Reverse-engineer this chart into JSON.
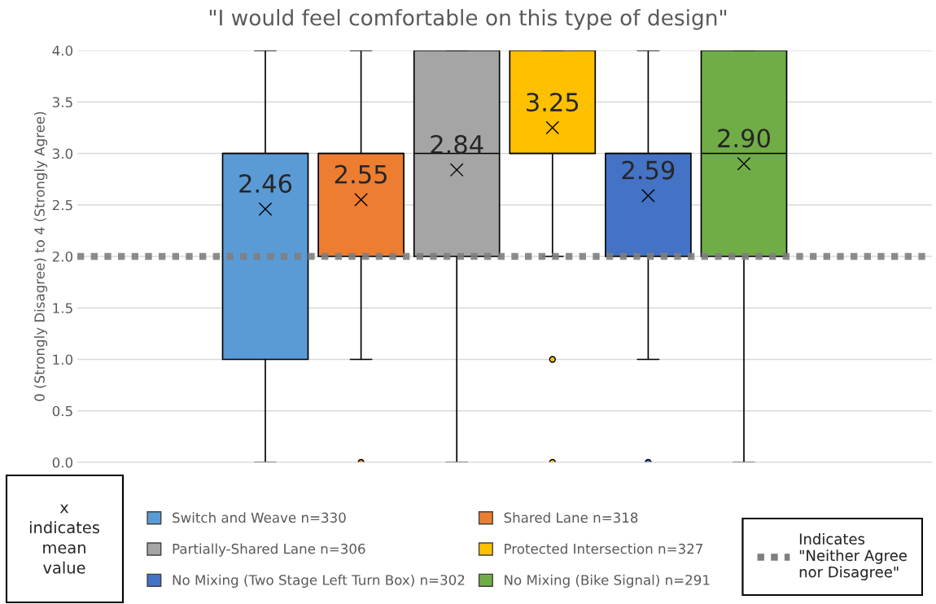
{
  "chart_data": {
    "type": "box",
    "title": "\"I would feel comfortable on this type of design\"",
    "ylabel": "0 (Strongly Disagree) to 4 (Strongly Agree)",
    "categories": [
      null
    ],
    "series": [
      {
        "name": "Switch and Weave n=330",
        "color": "#5b9bd5",
        "boxes": [
          {
            "low": 0,
            "q1": 1,
            "median": 3,
            "q3": 3,
            "high": 4,
            "mean": 2.46
          }
        ],
        "value_labels": [
          "2.46"
        ]
      },
      {
        "name": "Shared Lane n=318",
        "color": "#ed7d31",
        "boxes": [
          {
            "low": 1,
            "q1": 2,
            "median": 3,
            "q3": 3,
            "high": 4,
            "mean": 2.55,
            "outliers": [
              0
            ]
          }
        ],
        "value_labels": [
          "2.55"
        ]
      },
      {
        "name": "Partially-Shared Lane n=306",
        "color": "#a5a5a5",
        "boxes": [
          {
            "low": 0,
            "q1": 2,
            "median": 3,
            "q3": 4,
            "high": 4,
            "mean": 2.84
          }
        ],
        "value_labels": [
          "2.84"
        ]
      },
      {
        "name": "Protected Intersection n=327",
        "color": "#ffc000",
        "boxes": [
          {
            "low": 2,
            "q1": 3,
            "median": 3,
            "q3": 4,
            "high": 4,
            "mean": 3.25,
            "outliers": [
              1,
              0
            ]
          }
        ],
        "value_labels": [
          "3.25"
        ]
      },
      {
        "name": "No Mixing (Two Stage Left Turn Box) n=302",
        "color": "#4472c4",
        "boxes": [
          {
            "low": 1,
            "q1": 2,
            "median": 3,
            "q3": 3,
            "high": 4,
            "mean": 2.59,
            "outliers": [
              0
            ]
          }
        ],
        "value_labels": [
          "2.59"
        ]
      },
      {
        "name": "No Mixing (Bike Signal) n=291",
        "color": "#70ad47",
        "boxes": [
          {
            "low": 0,
            "q1": 2,
            "median": 3,
            "q3": 4,
            "high": 4,
            "mean": 2.9
          }
        ],
        "value_labels": [
          "2.90"
        ]
      }
    ],
    "ylim": [
      0,
      4
    ],
    "yticks": [
      {
        "value": 0,
        "label": "0.0"
      },
      {
        "value": 0.5,
        "label": "0.5"
      },
      {
        "value": 1,
        "label": "1.0"
      },
      {
        "value": 1.5,
        "label": "1.5"
      },
      {
        "value": 2,
        "label": "2.0"
      },
      {
        "value": 2.5,
        "label": "2.5"
      },
      {
        "value": 3,
        "label": "3.0"
      },
      {
        "value": 3.5,
        "label": "3.5"
      },
      {
        "value": 4,
        "label": "4.0"
      }
    ],
    "grid": "y",
    "legend": "bottom",
    "marker": "cross",
    "ref_lines": [
      {
        "axis": "y",
        "value": 2,
        "label": "Indicates\n\"Neither Agree\nnor Disagree\"",
        "color": "#7f7f7f",
        "line_style": "dotted"
      }
    ],
    "annotations": [
      "x\nindicates\nmean\nvalue"
    ]
  }
}
